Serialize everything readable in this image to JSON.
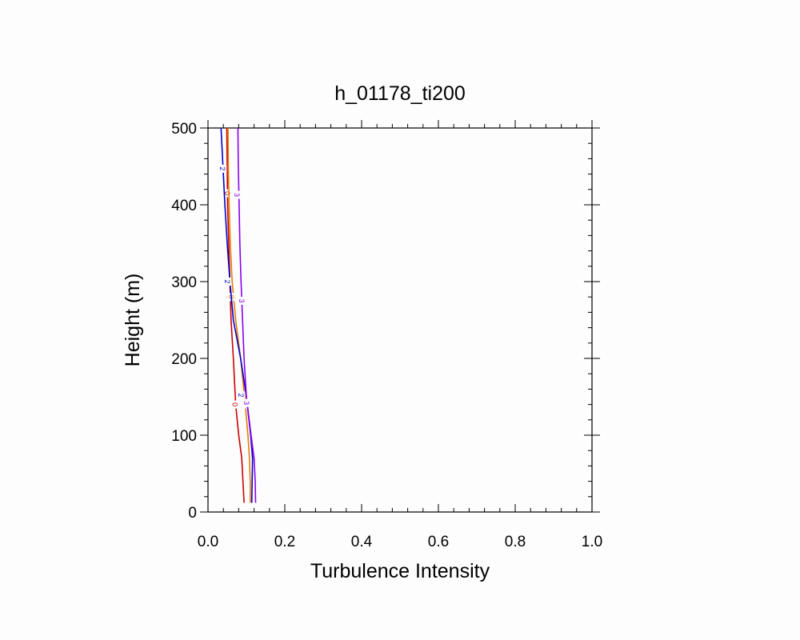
{
  "chart_data": {
    "type": "line",
    "title": "h_01178_ti200",
    "xlabel": "Turbulence Intensity",
    "ylabel": "Height (m)",
    "xlim": [
      0,
      1
    ],
    "ylim": [
      0,
      500
    ],
    "x_ticks": [
      "0.0",
      "0.2",
      "0.4",
      "0.6",
      "0.8",
      "1.0"
    ],
    "y_ticks": [
      "0",
      "100",
      "200",
      "300",
      "400",
      "500"
    ],
    "grid": false,
    "legend": "none",
    "series": [
      {
        "color": "#cc0000",
        "label": "0",
        "points": [
          [
            0.094,
            12
          ],
          [
            0.091,
            40
          ],
          [
            0.088,
            70
          ],
          [
            0.08,
            100
          ],
          [
            0.072,
            140
          ],
          [
            0.066,
            200
          ],
          [
            0.06,
            250
          ],
          [
            0.057,
            300
          ],
          [
            0.054,
            350
          ],
          [
            0.051,
            400
          ],
          [
            0.05,
            450
          ],
          [
            0.049,
            500
          ]
        ],
        "label_at": [
          [
            0.07,
            140
          ],
          [
            0.055,
            280
          ],
          [
            0.05,
            415
          ]
        ]
      },
      {
        "color": "#e87a00",
        "label": "8",
        "points": [
          [
            0.11,
            12
          ],
          [
            0.11,
            40
          ],
          [
            0.108,
            70
          ],
          [
            0.104,
            100
          ],
          [
            0.097,
            140
          ],
          [
            0.085,
            200
          ],
          [
            0.072,
            250
          ],
          [
            0.063,
            300
          ],
          [
            0.058,
            350
          ],
          [
            0.055,
            400
          ],
          [
            0.053,
            450
          ],
          [
            0.052,
            500
          ]
        ],
        "label_at": [
          [
            0.097,
            140
          ],
          [
            0.06,
            280
          ]
        ]
      },
      {
        "color": "#0000cc",
        "label": "2",
        "points": [
          [
            0.114,
            12
          ],
          [
            0.115,
            40
          ],
          [
            0.116,
            70
          ],
          [
            0.111,
            100
          ],
          [
            0.1,
            150
          ],
          [
            0.085,
            200
          ],
          [
            0.066,
            250
          ],
          [
            0.057,
            300
          ],
          [
            0.05,
            350
          ],
          [
            0.044,
            400
          ],
          [
            0.039,
            450
          ],
          [
            0.034,
            500
          ]
        ],
        "label_at": [
          [
            0.085,
            152
          ],
          [
            0.05,
            300
          ],
          [
            0.038,
            447
          ]
        ]
      },
      {
        "color": "#8800ee",
        "label": "3",
        "points": [
          [
            0.124,
            12
          ],
          [
            0.123,
            40
          ],
          [
            0.12,
            70
          ],
          [
            0.112,
            100
          ],
          [
            0.1,
            150
          ],
          [
            0.094,
            200
          ],
          [
            0.09,
            250
          ],
          [
            0.086,
            300
          ],
          [
            0.083,
            350
          ],
          [
            0.081,
            400
          ],
          [
            0.079,
            450
          ],
          [
            0.078,
            500
          ]
        ],
        "label_at": [
          [
            0.1,
            142
          ],
          [
            0.087,
            275
          ],
          [
            0.075,
            413
          ]
        ]
      }
    ]
  }
}
